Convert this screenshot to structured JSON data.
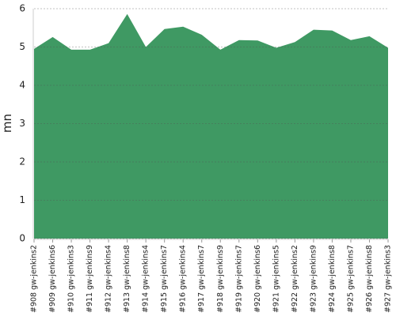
{
  "chart_data": {
    "type": "area",
    "y_label": "mn",
    "categories": [
      "#908 gw-jenkins2",
      "#909 gw-jenkins6",
      "#910 gw-jenkins3",
      "#911 gw-jenkins9",
      "#912 gw-jenkins4",
      "#913 gw-jenkins8",
      "#914 gw-jenkins4",
      "#915 gw-jenkins7",
      "#916 gw-jenkins4",
      "#917 gw-jenkins7",
      "#918 gw-jenkins9",
      "#919 gw-jenkins7",
      "#920 gw-jenkins6",
      "#921 gw-jenkins5",
      "#922 gw-jenkins2",
      "#923 gw-jenkins9",
      "#924 gw-jenkins8",
      "#925 gw-jenkins7",
      "#926 gw-jenkins8",
      "#927 gw-jenkins3"
    ],
    "values": [
      4.95,
      5.26,
      4.93,
      4.93,
      5.1,
      5.86,
      5.0,
      5.47,
      5.53,
      5.32,
      4.93,
      5.18,
      5.17,
      4.98,
      5.13,
      5.45,
      5.43,
      5.18,
      5.28,
      4.98
    ],
    "color": "#3f9963",
    "ylim": [
      0,
      6
    ],
    "yticks": [
      0,
      1,
      2,
      3,
      4,
      5,
      6
    ],
    "grid": true
  }
}
